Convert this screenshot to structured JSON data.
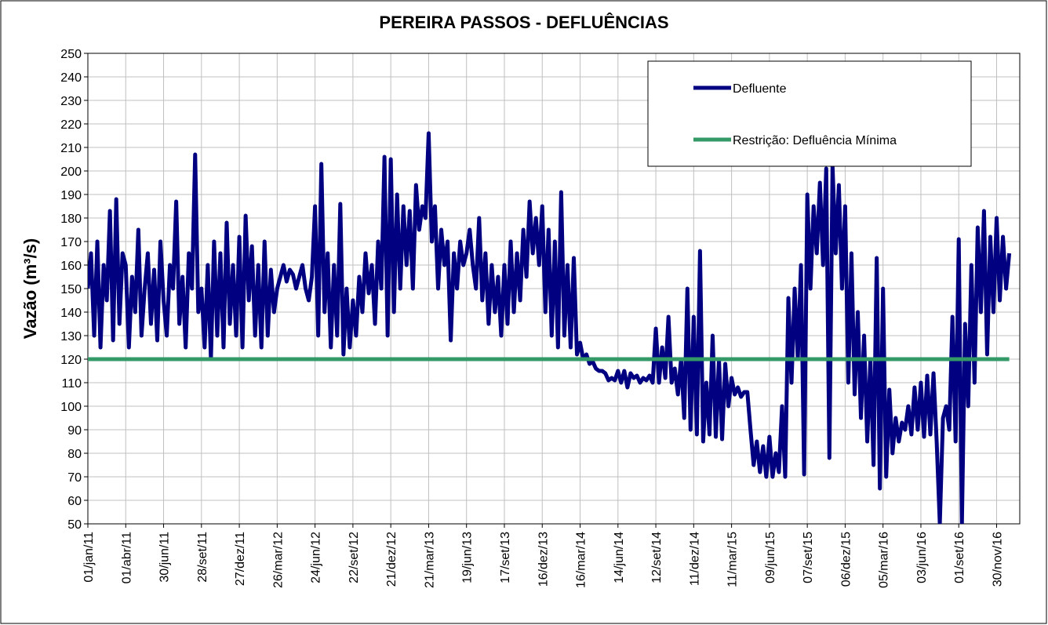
{
  "chart_data": {
    "type": "line",
    "title": "PEREIRA PASSOS - DEFLUÊNCIAS",
    "y_label": "Vazão (m³/s)",
    "xlim": [
      0,
      2215
    ],
    "ylim": [
      50,
      250
    ],
    "yticks": [
      50,
      60,
      70,
      80,
      90,
      100,
      110,
      120,
      130,
      140,
      150,
      160,
      170,
      180,
      190,
      200,
      210,
      220,
      230,
      240,
      250
    ],
    "xticks": [
      {
        "value": 0,
        "label": "01/jan/11"
      },
      {
        "value": 90,
        "label": "01/abr/11"
      },
      {
        "value": 180,
        "label": "30/jun/11"
      },
      {
        "value": 270,
        "label": "28/set/11"
      },
      {
        "value": 360,
        "label": "27/dez/11"
      },
      {
        "value": 450,
        "label": "26/mar/12"
      },
      {
        "value": 540,
        "label": "24/jun/12"
      },
      {
        "value": 630,
        "label": "22/set/12"
      },
      {
        "value": 720,
        "label": "21/dez/12"
      },
      {
        "value": 810,
        "label": "21/mar/13"
      },
      {
        "value": 900,
        "label": "19/jun/13"
      },
      {
        "value": 990,
        "label": "17/set/13"
      },
      {
        "value": 1080,
        "label": "16/dez/13"
      },
      {
        "value": 1170,
        "label": "16/mar/14"
      },
      {
        "value": 1260,
        "label": "14/jun/14"
      },
      {
        "value": 1350,
        "label": "12/set/14"
      },
      {
        "value": 1440,
        "label": "11/dez/14"
      },
      {
        "value": 1530,
        "label": "11/mar/15"
      },
      {
        "value": 1620,
        "label": "09/jun/15"
      },
      {
        "value": 1710,
        "label": "07/set/15"
      },
      {
        "value": 1800,
        "label": "06/dez/15"
      },
      {
        "value": 1890,
        "label": "05/mar/16"
      },
      {
        "value": 1980,
        "label": "03/jun/16"
      },
      {
        "value": 2070,
        "label": "01/set/16"
      },
      {
        "value": 2160,
        "label": "30/nov/16"
      }
    ],
    "grid": true,
    "legend": "top-right",
    "series": [
      {
        "name": "Defluente",
        "color": "#000080",
        "x": [
          0,
          7.5,
          15,
          22.5,
          30,
          37.5,
          45,
          52.5,
          60,
          67.5,
          75,
          82.5,
          90,
          97.5,
          105,
          112.5,
          120,
          127.5,
          135,
          142.5,
          150,
          157.5,
          165,
          172.5,
          180,
          187.5,
          195,
          202.5,
          210,
          217.5,
          225,
          232.5,
          240,
          247.5,
          255,
          262.5,
          270,
          277.5,
          285,
          292.5,
          300,
          307.5,
          315,
          322.5,
          330,
          337.5,
          345,
          352.5,
          360,
          367.5,
          375,
          382.5,
          390,
          397.5,
          405,
          412.5,
          420,
          427.5,
          435,
          442.5,
          450,
          457.5,
          465,
          472.5,
          480,
          487.5,
          495,
          502.5,
          510,
          517.5,
          525,
          532.5,
          540,
          547.5,
          555,
          562.5,
          570,
          577.5,
          585,
          592.5,
          600,
          607.5,
          615,
          622.5,
          630,
          637.5,
          645,
          652.5,
          660,
          667.5,
          675,
          682.5,
          690,
          697.5,
          705,
          712.5,
          720,
          727.5,
          735,
          742.5,
          750,
          757.5,
          765,
          772.5,
          780,
          787.5,
          795,
          802.5,
          810,
          817.5,
          825,
          832.5,
          840,
          847.5,
          855,
          862.5,
          870,
          877.5,
          885,
          892.5,
          900,
          907.5,
          915,
          922.5,
          930,
          937.5,
          945,
          952.5,
          960,
          967.5,
          975,
          982.5,
          990,
          997.5,
          1005,
          1012.5,
          1020,
          1027.5,
          1035,
          1042.5,
          1050,
          1057.5,
          1065,
          1072.5,
          1080,
          1087.5,
          1095,
          1102.5,
          1110,
          1117.5,
          1125,
          1132.5,
          1140,
          1147.5,
          1155,
          1162.5,
          1170,
          1177.5,
          1185,
          1192.5,
          1200,
          1207.5,
          1215,
          1222.5,
          1230,
          1237.5,
          1245,
          1252.5,
          1260,
          1267.5,
          1275,
          1282.5,
          1290,
          1297.5,
          1305,
          1312.5,
          1320,
          1327.5,
          1335,
          1342.5,
          1350,
          1357.5,
          1365,
          1372.5,
          1380,
          1387.5,
          1395,
          1402.5,
          1410,
          1417.5,
          1425,
          1432.5,
          1440,
          1447.5,
          1455,
          1462.5,
          1470,
          1477.5,
          1485,
          1492.5,
          1500,
          1507.5,
          1515,
          1522.5,
          1530,
          1537.5,
          1545,
          1552.5,
          1560,
          1567.5,
          1575,
          1582.5,
          1590,
          1597.5,
          1605,
          1612.5,
          1620,
          1627.5,
          1635,
          1642.5,
          1650,
          1657.5,
          1665,
          1672.5,
          1680,
          1687.5,
          1695,
          1702.5,
          1710,
          1717.5,
          1725,
          1732.5,
          1740,
          1747.5,
          1755,
          1762.5,
          1770,
          1777.5,
          1785,
          1792.5,
          1800,
          1807.5,
          1815,
          1822.5,
          1830,
          1837.5,
          1845,
          1852.5,
          1860,
          1867.5,
          1875,
          1882.5,
          1890,
          1897.5,
          1905,
          1912.5,
          1920,
          1927.5,
          1935,
          1942.5,
          1950,
          1957.5,
          1965,
          1972.5,
          1980,
          1987.5,
          1995,
          2002.5,
          2010,
          2017.5,
          2025,
          2032.5,
          2040,
          2047.5,
          2055,
          2062.5,
          2070,
          2077.5,
          2085,
          2092.5,
          2100,
          2107.5,
          2115,
          2122.5,
          2130,
          2137.5,
          2145,
          2152.5,
          2160,
          2167.5,
          2175,
          2182.5,
          2190
        ],
        "values": [
          150,
          165,
          130,
          170,
          125,
          160,
          145,
          183,
          128,
          188,
          135,
          165,
          160,
          125,
          155,
          140,
          175,
          130,
          150,
          165,
          135,
          158,
          128,
          170,
          145,
          130,
          160,
          150,
          187,
          135,
          155,
          125,
          165,
          150,
          207,
          140,
          150,
          125,
          160,
          120,
          170,
          130,
          165,
          125,
          178,
          135,
          160,
          130,
          172,
          125,
          181,
          145,
          168,
          130,
          160,
          125,
          170,
          130,
          158,
          140,
          150,
          155,
          160,
          153,
          158,
          156,
          150,
          155,
          160,
          150,
          145,
          155,
          185,
          130,
          203,
          140,
          165,
          125,
          160,
          130,
          186,
          122,
          150,
          125,
          145,
          130,
          155,
          140,
          165,
          148,
          160,
          135,
          170,
          150,
          206,
          130,
          205,
          140,
          190,
          150,
          185,
          160,
          183,
          150,
          194,
          175,
          185,
          180,
          216,
          170,
          185,
          150,
          175,
          160,
          170,
          128,
          165,
          150,
          170,
          160,
          165,
          175,
          160,
          150,
          180,
          145,
          165,
          135,
          160,
          140,
          155,
          130,
          160,
          135,
          170,
          140,
          165,
          145,
          175,
          155,
          187,
          165,
          180,
          160,
          185,
          140,
          175,
          130,
          170,
          125,
          191,
          130,
          160,
          125,
          163,
          122,
          127,
          120,
          122,
          118,
          119,
          116,
          115,
          115,
          114,
          111,
          112,
          111,
          115,
          110,
          115,
          108,
          114,
          112,
          113,
          110,
          112,
          111,
          113,
          110,
          133,
          110,
          125,
          112,
          138,
          110,
          116,
          105,
          120,
          95,
          150,
          90,
          138,
          88,
          166,
          85,
          110,
          88,
          130,
          87,
          120,
          86,
          118,
          100,
          112,
          105,
          108,
          104,
          106,
          106,
          90,
          75,
          85,
          72,
          83,
          70,
          87,
          70,
          80,
          72,
          100,
          70,
          146,
          110,
          150,
          120,
          160,
          71,
          190,
          150,
          185,
          165,
          195,
          160,
          201,
          78,
          202,
          165,
          194,
          150,
          185,
          110,
          165,
          105,
          140,
          95,
          130,
          85,
          120,
          75,
          163,
          65,
          150,
          70,
          107,
          80,
          95,
          85,
          93,
          90,
          100,
          88,
          108,
          90,
          110,
          87,
          113,
          88,
          114,
          85,
          50,
          95,
          100,
          90,
          138,
          85,
          171,
          50,
          135,
          100,
          160,
          110,
          176,
          140,
          183,
          122,
          172,
          140,
          180,
          145,
          172,
          150,
          165
        ]
      },
      {
        "name": "Restrição: Defluência Mínima",
        "color": "#339966",
        "x": [
          0,
          2190
        ],
        "values": [
          120,
          120
        ]
      }
    ]
  }
}
